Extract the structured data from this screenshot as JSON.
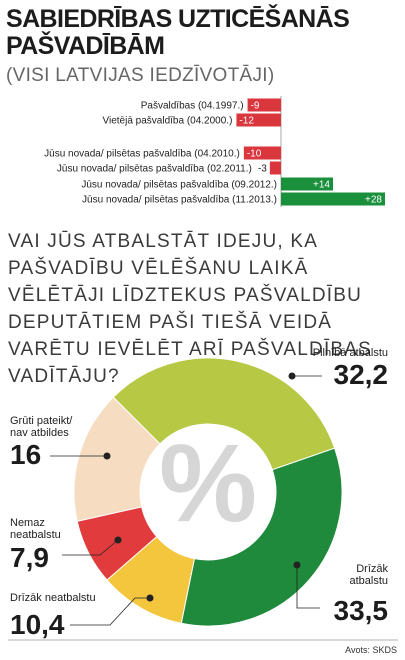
{
  "chart_data": [
    {
      "type": "bar",
      "orientation": "horizontal",
      "title": "SABIEDRĪBAS UZTICĒŠANĀS PAŠVADĪBĀM",
      "subtitle": "(VISI LATVIJAS IEDZĪVOTĀJI)",
      "categories": [
        "Pašvaldības (04.1997.)",
        "Vietējā pašvaldība (04.2000.)",
        "Jūsu novada/ pilsētas pašvaldība (04.2010.)",
        "Jūsu novada/ pilsētas pašvaldība (02.2011.)",
        "Jūsu novada/ pilsētas pašvaldība (09.2012.)",
        "Jūsu novada/ pilsētas pašvaldība (11.2013.)"
      ],
      "values": [
        -9,
        -12,
        -10,
        -3,
        14,
        28
      ],
      "value_labels": [
        "-9",
        "-12",
        "-10",
        "-3",
        "+14",
        "+28"
      ],
      "negative_color": "#d9363e",
      "positive_color": "#1a8f3c"
    },
    {
      "type": "pie",
      "donut": true,
      "title": "VAI JŪS ATBALSTĀT IDEJU, KA PAŠVADĪBU VĒLĒŠANU LAIKĀ VĒLĒTĀJI LĪDZTEKUS PAŠVALDĪBU DEPUTĀTIEM PAŠI TIEŠĀ VEIDĀ VARĒTU IEVĒLĒT ARĪ PAŠVALDĪBAS VADĪTĀJU?",
      "categories": [
        "Pilnībā atbalstu",
        "Drīzāk atbalstu",
        "Drīzāk neatbalstu",
        "Nemaz neatbalstu",
        "Grūti pateikt/ nav atbildes"
      ],
      "values": [
        32.2,
        33.5,
        10.4,
        7.9,
        16
      ],
      "value_labels": [
        "32,2",
        "33,5",
        "10,4",
        "7,9",
        "16"
      ],
      "colors": [
        "#b6c844",
        "#1f8a3b",
        "#f4c63e",
        "#e23b3e",
        "#f6dcc0"
      ],
      "source": "Avots: SKDS"
    }
  ]
}
